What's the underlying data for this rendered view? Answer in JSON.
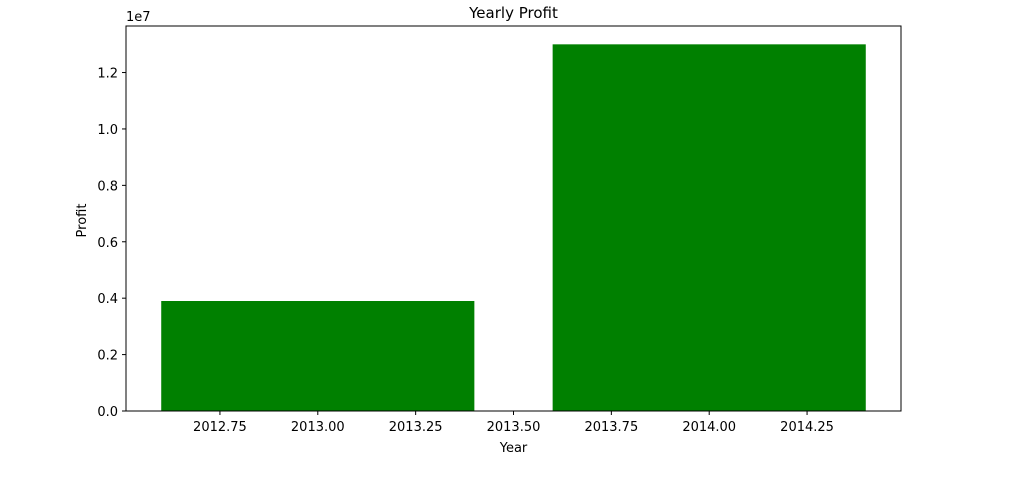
{
  "chart_data": {
    "type": "bar",
    "title": "Yearly Profit",
    "xlabel": "Year",
    "ylabel": "Profit",
    "y_offset_label": "1e7",
    "x": [
      2013,
      2014
    ],
    "values": [
      3900000,
      13000000
    ],
    "bar_width": 0.8,
    "bar_color": "#008000",
    "xlim": [
      2012.51,
      2014.49
    ],
    "ylim": [
      0,
      13650000
    ],
    "x_ticks": [
      2012.75,
      2013.0,
      2013.25,
      2013.5,
      2013.75,
      2014.0,
      2014.25
    ],
    "x_tick_labels": [
      "2012.75",
      "2013.00",
      "2013.25",
      "2013.50",
      "2013.75",
      "2014.00",
      "2014.25"
    ],
    "y_ticks": [
      0,
      2000000,
      4000000,
      6000000,
      8000000,
      10000000,
      12000000
    ],
    "y_tick_labels": [
      "0.0",
      "0.2",
      "0.4",
      "0.6",
      "0.8",
      "1.0",
      "1.2"
    ],
    "grid": false,
    "legend": null
  }
}
